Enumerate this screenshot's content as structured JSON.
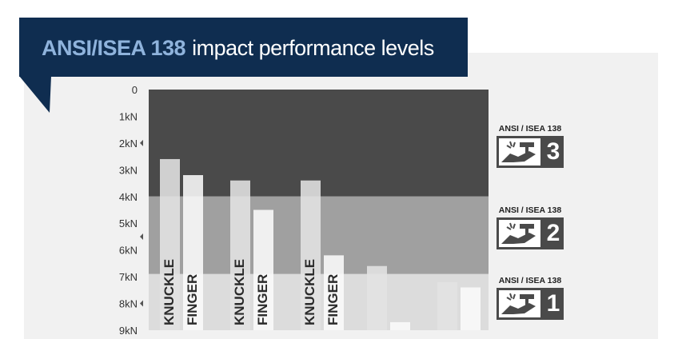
{
  "title": {
    "bold": "ANSI/ISEA 138",
    "rest": "impact performance levels"
  },
  "chart_data": {
    "type": "bar",
    "ylim": [
      0,
      9
    ],
    "y_ticks": [
      "0",
      "1kN",
      "2kN",
      "3kN",
      "4kN",
      "5kN",
      "6kN",
      "7kN",
      "8kN",
      "9kN"
    ],
    "levels": [
      {
        "level": "3",
        "from": 0,
        "to": 4,
        "caption": "ANSI / ISEA 138",
        "color": "#4a4a4a"
      },
      {
        "level": "2",
        "from": 4,
        "to": 6.9,
        "caption": "ANSI / ISEA 138",
        "color": "#a0a0a0"
      },
      {
        "level": "1",
        "from": 6.9,
        "to": 9,
        "caption": "ANSI / ISEA 138",
        "color": "#dcdcdc"
      }
    ],
    "level_markers": [
      2,
      5.5,
      8
    ],
    "bars": [
      {
        "label": "KNUCKLE",
        "value": 2.6,
        "color": "#e2e2e2"
      },
      {
        "label": "FINGER",
        "value": 3.2,
        "color": "#fbfbfb"
      },
      {
        "label": "KNUCKLE",
        "value": 3.4,
        "color": "#e2e2e2"
      },
      {
        "label": "FINGER",
        "value": 4.5,
        "color": "#fbfbfb"
      },
      {
        "label": "KNUCKLE",
        "value": 3.4,
        "color": "#e2e2e2"
      },
      {
        "label": "FINGER",
        "value": 6.2,
        "color": "#fbfbfb"
      },
      {
        "label": "",
        "value": 6.6,
        "color": "#e2e2e2"
      },
      {
        "label": "",
        "value": 8.7,
        "color": "#fbfbfb"
      },
      {
        "label": "",
        "value": 7.2,
        "color": "#e2e2e2"
      },
      {
        "label": "",
        "value": 7.4,
        "color": "#fbfbfb"
      }
    ]
  }
}
